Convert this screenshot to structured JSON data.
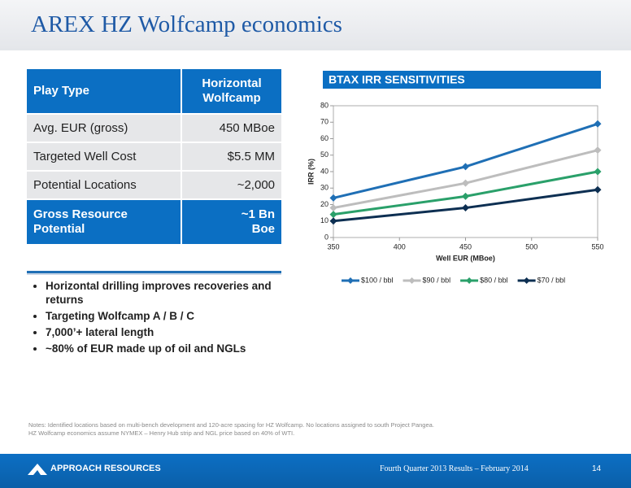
{
  "header": {
    "title": "AREX HZ Wolfcamp economics"
  },
  "table": {
    "rows": [
      [
        "Play Type",
        "Horizontal\nWolfcamp"
      ],
      [
        "Avg. EUR (gross)",
        "450 MBoe"
      ],
      [
        "Targeted Well Cost",
        "$5.5 MM"
      ],
      [
        "Potential Locations",
        "~2,000"
      ],
      [
        "Gross Resource\nPotential",
        "~1 Bn\nBoe"
      ]
    ]
  },
  "bullets": [
    "Horizontal drilling improves recoveries and returns",
    "Targeting Wolfcamp A / B / C",
    "7,000’+ lateral length",
    "~80% of EUR made up of oil and NGLs"
  ],
  "notes": [
    "Notes: Identified locations based on multi-bench development and 120-acre spacing for HZ Wolfcamp.  No locations assigned to south Project Pangea.",
    "HZ Wolfcamp economics assume NYMEX – Henry Hub strip and NGL price based on 40% of WTI."
  ],
  "footer": {
    "company": "APPROACH RESOURCES",
    "event": "Fourth Quarter 2013 Results – February 2014",
    "page": "14"
  },
  "chart_data": {
    "type": "line",
    "title": "BTAX IRR SENSITIVITIES",
    "x_label": "Well EUR (MBoe)",
    "y_label": "IRR (%)",
    "x": [
      350,
      450,
      550
    ],
    "series": [
      {
        "name": "$100 / bbl",
        "color": "#1f6fb5",
        "values": [
          24,
          43,
          69
        ]
      },
      {
        "name": "$90 / bbl",
        "color": "#bdbdbd",
        "values": [
          18,
          33,
          53
        ]
      },
      {
        "name": "$80 / bbl",
        "color": "#2aa06a",
        "values": [
          14,
          25,
          40
        ]
      },
      {
        "name": "$70 / bbl",
        "color": "#0d2f52",
        "values": [
          10,
          18,
          29
        ]
      }
    ],
    "xlim": [
      350,
      550
    ],
    "xticks": [
      350,
      400,
      450,
      500,
      550
    ],
    "ylim": [
      0,
      80
    ],
    "yticks": [
      0,
      10,
      20,
      30,
      40,
      50,
      60,
      70,
      80
    ],
    "grid": false,
    "legend": "bottom"
  }
}
